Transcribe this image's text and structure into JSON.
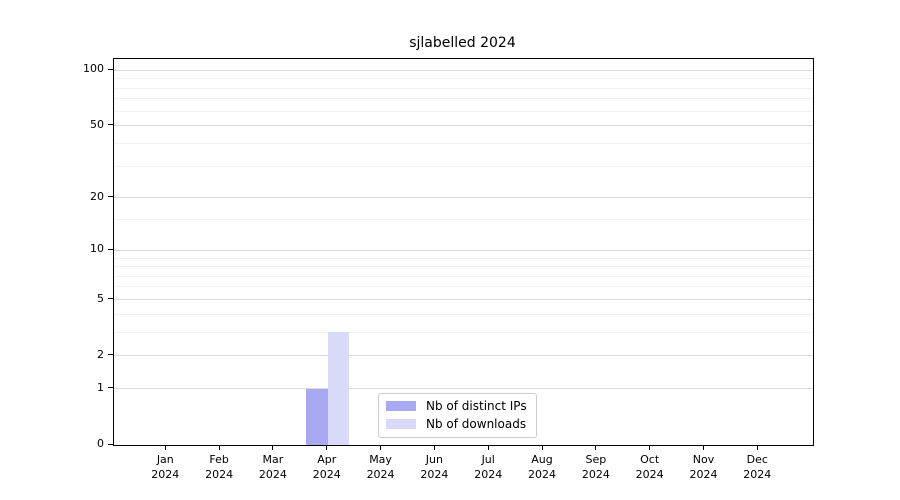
{
  "chart_data": {
    "type": "bar",
    "title": "sjlabelled 2024",
    "x": {
      "year": "2024",
      "months": [
        "Jan",
        "Feb",
        "Mar",
        "Apr",
        "May",
        "Jun",
        "Jul",
        "Aug",
        "Sep",
        "Oct",
        "Nov",
        "Dec"
      ]
    },
    "series": [
      {
        "name": "Nb of distinct IPs",
        "color": "#a9a9f3",
        "values": [
          0,
          0,
          0,
          1,
          0,
          0,
          0,
          0,
          0,
          0,
          0,
          0
        ]
      },
      {
        "name": "Nb of downloads",
        "color": "#d9d9fa",
        "values": [
          0,
          0,
          0,
          3,
          0,
          0,
          0,
          0,
          0,
          0,
          0,
          0
        ]
      }
    ],
    "yscale": "log1p",
    "ylim": [
      0,
      115
    ],
    "y_major_ticks": [
      0,
      1,
      2,
      5,
      10,
      20,
      50,
      100
    ],
    "y_minor_gridlines": [
      3,
      4,
      6,
      7,
      8,
      9,
      15,
      30,
      40,
      60,
      70,
      80,
      90
    ],
    "grid": {
      "major_color": "#d9d9d9",
      "minor_color": "#f0f0f0"
    },
    "legend": {
      "position": "lower center"
    }
  }
}
